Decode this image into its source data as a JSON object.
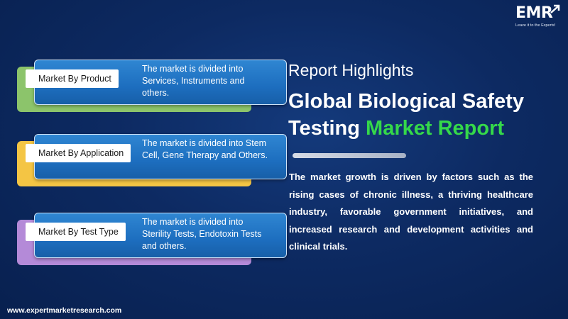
{
  "brand": {
    "logo_text": "EMR",
    "tagline": "Leave it to the Experts!",
    "website": "www.expertmarketresearch.com"
  },
  "segments": [
    {
      "label": "Market By Product",
      "description": "The market is divided into Services, Instruments and others.",
      "accent_color": "#8cc46b"
    },
    {
      "label": "Market By Application",
      "description": "The market is divided into Stem Cell, Gene Therapy and Others.",
      "accent_color": "#f4c544"
    },
    {
      "label": "Market By Test Type",
      "description": "The market is divided into Sterility Tests, Endotoxin Tests and others.",
      "accent_color": "#b48ad8"
    }
  ],
  "highlights": {
    "eyebrow": "Report Highlights",
    "title_part1": "Global Biological Safety Testing",
    "title_part2": "Market Report",
    "title_highlight_color": "#35d84a",
    "summary": "The market growth is driven by factors such as the rising cases of chronic illness, a thriving healthcare industry, favorable government initiatives, and increased research and development activities and clinical trials."
  },
  "colors": {
    "background": "#0a2256",
    "card": "#1d6ebf"
  }
}
